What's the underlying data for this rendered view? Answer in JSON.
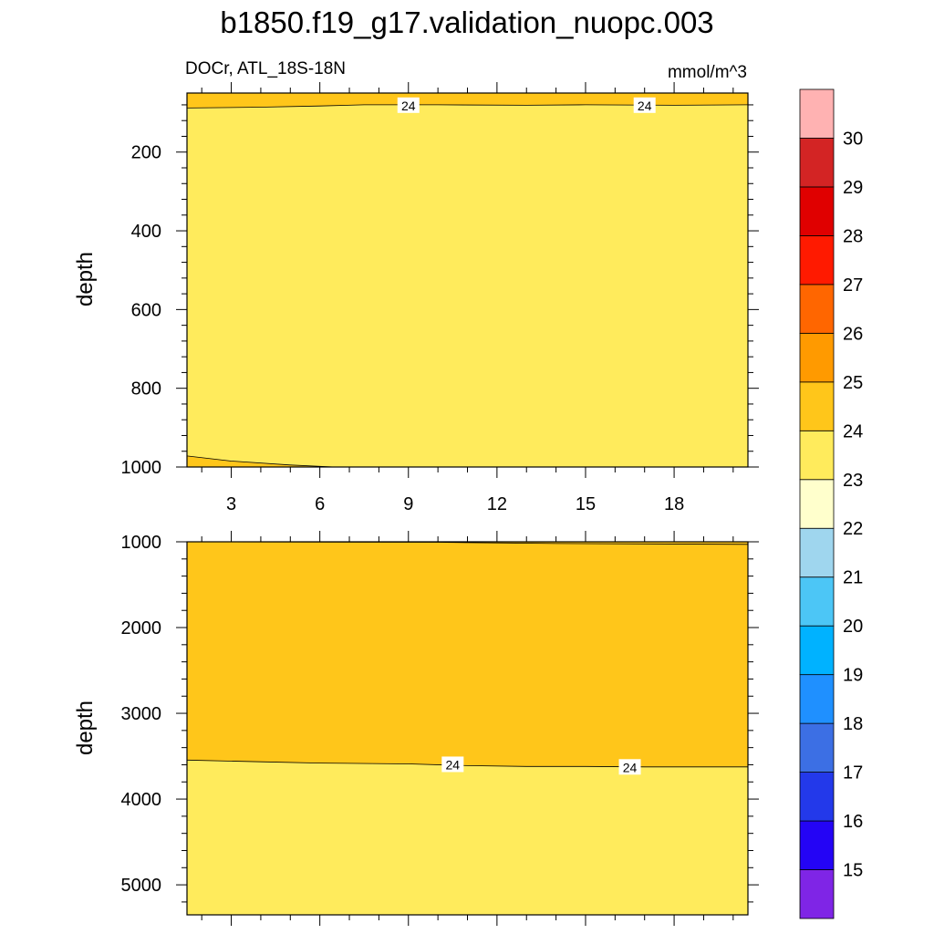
{
  "title": "b1850.f19_g17.validation_nuopc.003",
  "chart_data": {
    "type": "heatmap",
    "title": "b1850.f19_g17.validation_nuopc.003",
    "variable_label": "DOCr, ATL_18S-18N",
    "units": "mmol/m^3",
    "xticks": [
      3,
      6,
      9,
      12,
      15,
      18
    ],
    "xlim": [
      1.5,
      20.5
    ],
    "colorbar": {
      "levels": [
        15,
        16,
        17,
        18,
        19,
        20,
        21,
        22,
        23,
        24,
        25,
        26,
        27,
        28,
        29,
        30
      ],
      "colors": [
        "#7f25e6",
        "#2404f5",
        "#2339ea",
        "#3c6fe4",
        "#1f90ff",
        "#00b2ff",
        "#4cc6f6",
        "#9fd6ee",
        "#ffffcc",
        "#ffeb5c",
        "#ffc61a",
        "#ff9a00",
        "#ff6600",
        "#ff1a00",
        "#e00000",
        "#d32424",
        "#ffb2b2"
      ]
    },
    "panels": [
      {
        "ylabel": "depth",
        "ylim": [
          1000,
          50
        ],
        "yticks": [
          200,
          400,
          600,
          800,
          1000
        ],
        "regions": [
          {
            "level_range": "24-25",
            "color": "#ffc61a",
            "boundary": [
              [
                1.5,
                88
              ],
              [
                4,
                86
              ],
              [
                6,
                83
              ],
              [
                7.5,
                80
              ],
              [
                10,
                80
              ],
              [
                13,
                81
              ],
              [
                15,
                80
              ],
              [
                18,
                81
              ],
              [
                20.5,
                80
              ]
            ],
            "side": "top"
          },
          {
            "level_range": "23-24",
            "color": "#ffeb5c"
          },
          {
            "level_range": "24-25",
            "color": "#ffc61a",
            "boundary": [
              [
                1.5,
                972
              ],
              [
                3,
                985
              ],
              [
                5,
                995
              ],
              [
                6.5,
                1000
              ]
            ],
            "side": "bottom"
          }
        ],
        "contour_labels": [
          {
            "text": "24",
            "x": 9,
            "y": 82
          },
          {
            "text": "24",
            "x": 17,
            "y": 82
          }
        ]
      },
      {
        "ylabel": "depth",
        "ylim": [
          5350,
          1000
        ],
        "yticks": [
          1000,
          2000,
          3000,
          4000,
          5000
        ],
        "regions": [
          {
            "level_range": "24-25",
            "color": "#ffc61a",
            "boundary": [
              [
                1.5,
                3545
              ],
              [
                4,
                3565
              ],
              [
                6,
                3580
              ],
              [
                9,
                3590
              ],
              [
                11,
                3610
              ],
              [
                13,
                3620
              ],
              [
                15,
                3620
              ],
              [
                17,
                3625
              ],
              [
                20.5,
                3625
              ]
            ],
            "side": "top"
          },
          {
            "level_range": "23-24",
            "color": "#ffeb5c"
          }
        ],
        "top_contour": [
          [
            1.5,
            1000
          ],
          [
            10,
            1005
          ],
          [
            14,
            1020
          ],
          [
            20.5,
            1030
          ]
        ],
        "contour_labels": [
          {
            "text": "24",
            "x": 10.5,
            "y": 3600
          },
          {
            "text": "24",
            "x": 16.5,
            "y": 3630
          }
        ]
      }
    ]
  }
}
